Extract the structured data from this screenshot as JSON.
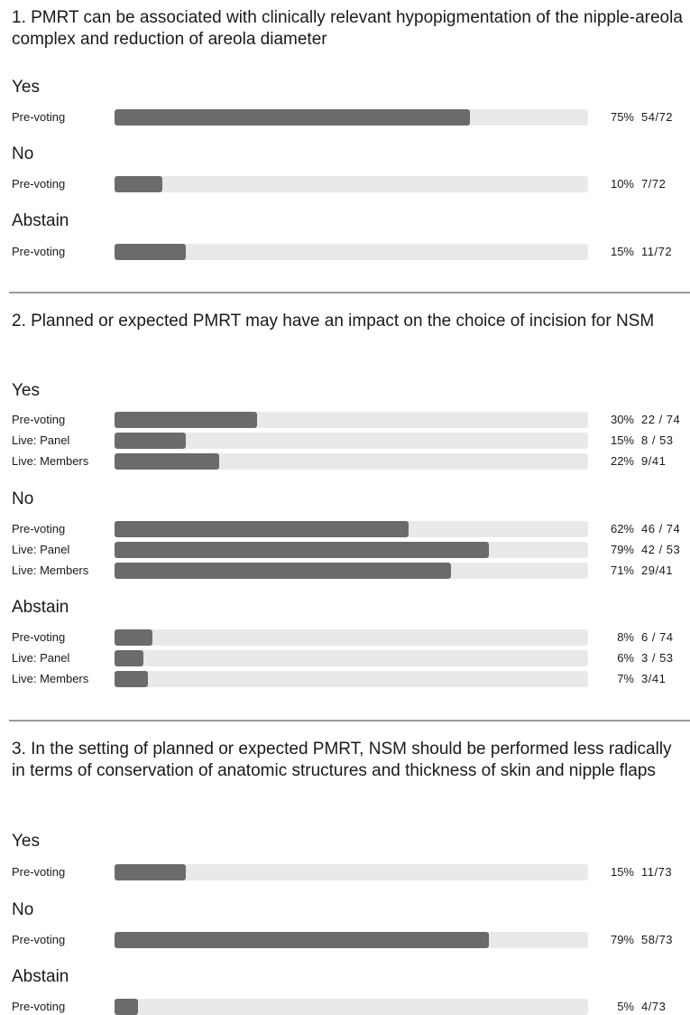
{
  "chart_data": [
    {
      "type": "bar",
      "title": "1. PMRT can be associated with clinically relevant hypopigmentation of the nipple-areola complex and reduction of areola diameter",
      "groups": [
        {
          "name": "Yes",
          "bars": [
            {
              "label": "Pre-voting",
              "value": 75,
              "pct": "75%",
              "count": "54/72"
            }
          ]
        },
        {
          "name": "No",
          "bars": [
            {
              "label": "Pre-voting",
              "value": 10,
              "pct": "10%",
              "count": "7/72"
            }
          ]
        },
        {
          "name": "Abstain",
          "bars": [
            {
              "label": "Pre-voting",
              "value": 15,
              "pct": "15%",
              "count": "11/72"
            }
          ]
        }
      ]
    },
    {
      "type": "bar",
      "title": "2. Planned or expected PMRT may have an impact on the choice of incision for NSM",
      "groups": [
        {
          "name": "Yes",
          "bars": [
            {
              "label": "Pre-voting",
              "value": 30,
              "pct": "30%",
              "count": "22 / 74"
            },
            {
              "label": "Live: Panel",
              "value": 15,
              "pct": "15%",
              "count": "8 / 53"
            },
            {
              "label": "Live: Members",
              "value": 22,
              "pct": "22%",
              "count": "9/41"
            }
          ]
        },
        {
          "name": "No",
          "bars": [
            {
              "label": "Pre-voting",
              "value": 62,
              "pct": "62%",
              "count": "46 / 74"
            },
            {
              "label": "Live: Panel",
              "value": 79,
              "pct": "79%",
              "count": "42 / 53"
            },
            {
              "label": "Live: Members",
              "value": 71,
              "pct": "71%",
              "count": "29/41"
            }
          ]
        },
        {
          "name": "Abstain",
          "bars": [
            {
              "label": "Pre-voting",
              "value": 8,
              "pct": "8%",
              "count": "6 / 74"
            },
            {
              "label": "Live: Panel",
              "value": 6,
              "pct": "6%",
              "count": "3 / 53"
            },
            {
              "label": "Live: Members",
              "value": 7,
              "pct": "7%",
              "count": "3/41"
            }
          ]
        }
      ]
    },
    {
      "type": "bar",
      "title": "3. In the setting of planned or expected PMRT, NSM should be performed less radically in terms of conservation of anatomic structures and thickness of skin and nipple flaps",
      "groups": [
        {
          "name": "Yes",
          "bars": [
            {
              "label": "Pre-voting",
              "value": 15,
              "pct": "15%",
              "count": "11/73"
            }
          ]
        },
        {
          "name": "No",
          "bars": [
            {
              "label": "Pre-voting",
              "value": 79,
              "pct": "79%",
              "count": "58/73"
            }
          ]
        },
        {
          "name": "Abstain",
          "bars": [
            {
              "label": "Pre-voting",
              "value": 5,
              "pct": "5%",
              "count": "4/73"
            }
          ]
        }
      ]
    }
  ],
  "colors": {
    "bar_fill": "#6b6b6b",
    "bar_track": "#e9e9e9",
    "separator": "#9a9a9a"
  }
}
